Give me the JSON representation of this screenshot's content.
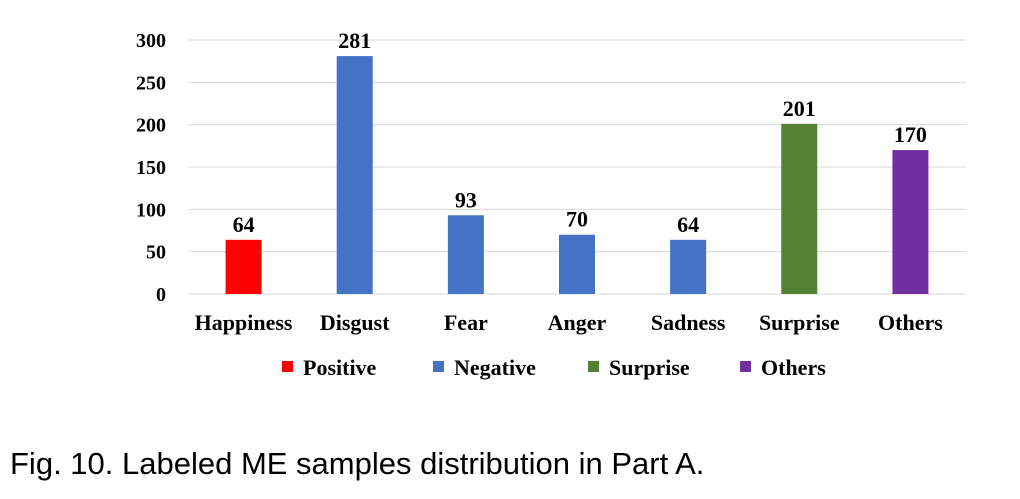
{
  "caption": "Fig. 10. Labeled ME samples distribution in Part A.",
  "chart_data": {
    "type": "bar",
    "categories": [
      "Happiness",
      "Disgust",
      "Fear",
      "Anger",
      "Sadness",
      "Surprise",
      "Others"
    ],
    "values": [
      64,
      281,
      93,
      70,
      64,
      201,
      170
    ],
    "bar_groups": [
      "Positive",
      "Negative",
      "Negative",
      "Negative",
      "Negative",
      "Surprise",
      "Others"
    ],
    "data_labels": [
      "64",
      "281",
      "93",
      "70",
      "64",
      "201",
      "170"
    ],
    "ylim": [
      0,
      300
    ],
    "yticks": [
      0,
      50,
      100,
      150,
      200,
      250,
      300
    ],
    "grid": true,
    "title": "",
    "xlabel": "",
    "ylabel": "",
    "legend": {
      "placement": "bottom",
      "entries": [
        {
          "name": "Positive",
          "color": "#ff0000"
        },
        {
          "name": "Negative",
          "color": "#4472c4"
        },
        {
          "name": "Surprise",
          "color": "#548235"
        },
        {
          "name": "Others",
          "color": "#7030a0"
        }
      ]
    }
  }
}
